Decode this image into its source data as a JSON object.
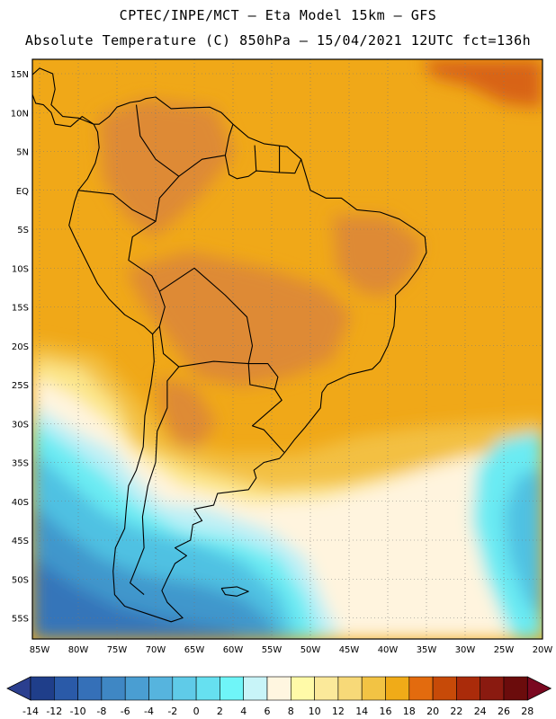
{
  "header": {
    "line1": "CPTEC/INPE/MCT  –   Eta Model 15km  –  GFS",
    "line2": "Absolute Temperature (C) 850hPa – 15/04/2021 12UTC fct=136h"
  },
  "map": {
    "lat_labels": [
      "15N",
      "10N",
      "5N",
      "EQ",
      "5S",
      "10S",
      "15S",
      "20S",
      "25S",
      "30S",
      "35S",
      "40S",
      "45S",
      "50S",
      "55S"
    ],
    "lon_labels": [
      "85W",
      "80W",
      "75W",
      "70W",
      "65W",
      "60W",
      "55W",
      "50W",
      "45W",
      "40W",
      "35W",
      "30W",
      "25W",
      "20W"
    ],
    "lat_range": [
      16.5,
      -58
    ],
    "lon_range": [
      -86,
      -20
    ]
  },
  "colorbar": {
    "ticks": [
      "-14",
      "-12",
      "-10",
      "-8",
      "-6",
      "-4",
      "-2",
      "0",
      "2",
      "4",
      "6",
      "8",
      "10",
      "12",
      "14",
      "16",
      "18",
      "20",
      "22",
      "24",
      "26",
      "28"
    ],
    "colors": [
      "#1f3e8a",
      "#2a5aa8",
      "#3570b8",
      "#3f87c4",
      "#4a9ed2",
      "#56b4de",
      "#5fcbe8",
      "#66e0f0",
      "#6ff5f8",
      "#c8f4f8",
      "#fff6e0",
      "#fffaa8",
      "#fbe99a",
      "#f7d978",
      "#f2c344",
      "#f0ab18",
      "#e36b0e",
      "#c74a08",
      "#aa2b0a",
      "#8a1a10",
      "#6b0c0c"
    ],
    "under_color": "#2b3f8f",
    "over_color": "#7a0820"
  },
  "palette": {
    "orange_hot": "#de8a34",
    "orange": "#f0a818",
    "gold": "#f3c042",
    "yellow": "#fce68a",
    "cream": "#fff4de",
    "pale_cyan": "#bef0f6",
    "cyan": "#6bebf3",
    "blue_light": "#4fc1e2",
    "blue_mid": "#3f97cc",
    "blue_dark": "#3574b9",
    "red_hot": "#d86418",
    "coast": "#000000"
  }
}
